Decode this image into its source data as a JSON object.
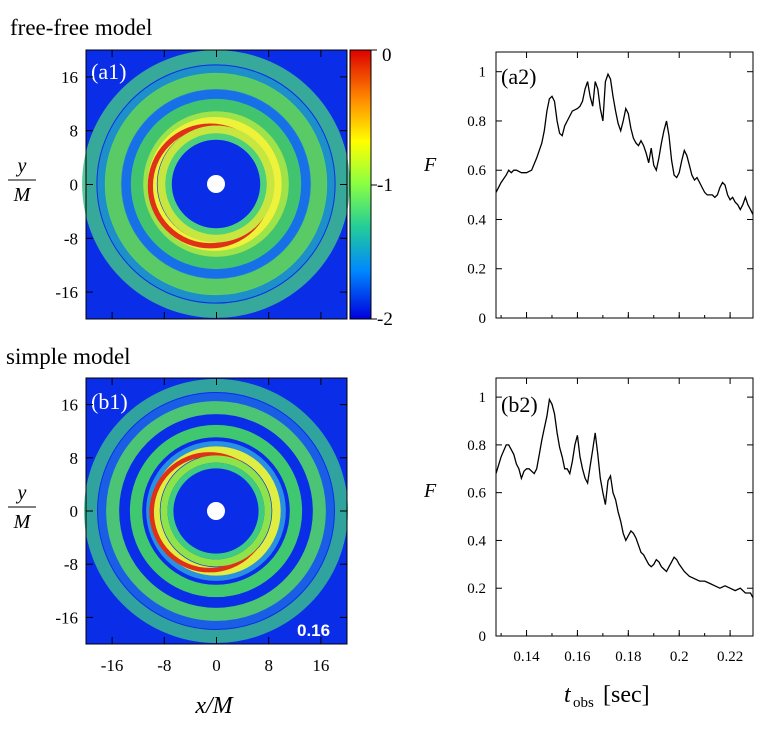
{
  "colors": {
    "low": "#0022ee",
    "mid": "#33cc66",
    "high": "#ee2200",
    "hole": "#ffffff",
    "line": "#000000"
  },
  "rows": [
    {
      "section_title": "free-free model",
      "map_label": "(a1)",
      "curve_label": "(a2)"
    },
    {
      "section_title": "simple model",
      "map_label": "(b1)",
      "curve_label": "(b2)",
      "snapshot_time": "0.16"
    }
  ],
  "map_axes": {
    "x_label": "x/M",
    "y_label_num": "y",
    "y_label_den": "M",
    "x_ticks": [
      "-16",
      "-8",
      "0",
      "8",
      "16"
    ],
    "y_ticks": [
      "16",
      "8",
      "0",
      "-8",
      "-16"
    ]
  },
  "colorbar": {
    "ticks": [
      "0",
      "-1",
      "-2"
    ],
    "range": [
      -2,
      0
    ]
  },
  "curve_axes": {
    "y_label": "F",
    "x_label_main": "t",
    "x_label_sub": "obs",
    "x_label_unit": "[sec]",
    "y_ticks": [
      "1",
      "0.8",
      "0.6",
      "0.4",
      "0.2",
      "0"
    ],
    "x_ticks": [
      "0.14",
      "0.16",
      "0.18",
      "0.2",
      "0.22"
    ]
  },
  "chart_data": [
    {
      "type": "heatmap",
      "panel": "(a1)",
      "xlabel": "x/M",
      "ylabel": "y/M",
      "xlim": [
        -20,
        20
      ],
      "ylim": [
        -20,
        20
      ],
      "colorbar_range": [
        -2,
        0
      ]
    },
    {
      "type": "line",
      "panel": "(a2)",
      "ylabel": "F",
      "xlabel": "t_obs [sec]",
      "xlim": [
        0.128,
        0.229
      ],
      "ylim": [
        0,
        1.08
      ],
      "series": [
        {
          "x": [
            0.128,
            0.13,
            0.132,
            0.133,
            0.134,
            0.135,
            0.136,
            0.138,
            0.14,
            0.142,
            0.144,
            0.146,
            0.147,
            0.148,
            0.149,
            0.15,
            0.151,
            0.152,
            0.153,
            0.154,
            0.155,
            0.156,
            0.158,
            0.16,
            0.161,
            0.162,
            0.163,
            0.164,
            0.165,
            0.166,
            0.167,
            0.168,
            0.169,
            0.17,
            0.171,
            0.172,
            0.173,
            0.174,
            0.175,
            0.176,
            0.177,
            0.178,
            0.179,
            0.18,
            0.181,
            0.182,
            0.183,
            0.184,
            0.185,
            0.186,
            0.187,
            0.188,
            0.189,
            0.19,
            0.191,
            0.192,
            0.193,
            0.194,
            0.195,
            0.196,
            0.197,
            0.198,
            0.199,
            0.2,
            0.201,
            0.202,
            0.203,
            0.204,
            0.205,
            0.206,
            0.207,
            0.208,
            0.209,
            0.21,
            0.211,
            0.212,
            0.213,
            0.214,
            0.215,
            0.216,
            0.217,
            0.218,
            0.219,
            0.22,
            0.221,
            0.222,
            0.223,
            0.224,
            0.225,
            0.226,
            0.227,
            0.228,
            0.229
          ],
          "y": [
            0.51,
            0.55,
            0.58,
            0.6,
            0.59,
            0.6,
            0.6,
            0.59,
            0.59,
            0.6,
            0.65,
            0.71,
            0.76,
            0.84,
            0.89,
            0.9,
            0.88,
            0.8,
            0.75,
            0.74,
            0.78,
            0.8,
            0.84,
            0.85,
            0.86,
            0.88,
            0.93,
            0.96,
            0.9,
            0.86,
            0.96,
            0.93,
            0.85,
            0.8,
            0.96,
            0.99,
            0.97,
            0.9,
            0.84,
            0.79,
            0.76,
            0.8,
            0.85,
            0.83,
            0.77,
            0.73,
            0.71,
            0.7,
            0.72,
            0.7,
            0.67,
            0.63,
            0.69,
            0.62,
            0.6,
            0.65,
            0.71,
            0.76,
            0.8,
            0.74,
            0.64,
            0.58,
            0.57,
            0.59,
            0.64,
            0.68,
            0.66,
            0.62,
            0.58,
            0.56,
            0.57,
            0.55,
            0.53,
            0.51,
            0.5,
            0.5,
            0.5,
            0.49,
            0.5,
            0.53,
            0.55,
            0.54,
            0.5,
            0.48,
            0.49,
            0.47,
            0.46,
            0.44,
            0.46,
            0.49,
            0.46,
            0.44,
            0.42
          ]
        }
      ]
    },
    {
      "type": "heatmap",
      "panel": "(b1)",
      "xlabel": "x/M",
      "ylabel": "y/M",
      "xlim": [
        -20,
        20
      ],
      "ylim": [
        -20,
        20
      ],
      "annotation": "0.16"
    },
    {
      "type": "line",
      "panel": "(b2)",
      "ylabel": "F",
      "xlabel": "t_obs [sec]",
      "xlim": [
        0.128,
        0.229
      ],
      "ylim": [
        0,
        1.08
      ],
      "series": [
        {
          "x": [
            0.128,
            0.13,
            0.132,
            0.133,
            0.134,
            0.135,
            0.136,
            0.137,
            0.138,
            0.139,
            0.14,
            0.141,
            0.142,
            0.143,
            0.144,
            0.145,
            0.146,
            0.147,
            0.148,
            0.149,
            0.15,
            0.151,
            0.152,
            0.153,
            0.154,
            0.155,
            0.156,
            0.157,
            0.158,
            0.159,
            0.16,
            0.161,
            0.162,
            0.163,
            0.164,
            0.165,
            0.166,
            0.167,
            0.168,
            0.169,
            0.17,
            0.171,
            0.172,
            0.173,
            0.174,
            0.175,
            0.176,
            0.177,
            0.178,
            0.179,
            0.18,
            0.181,
            0.182,
            0.183,
            0.184,
            0.185,
            0.186,
            0.187,
            0.188,
            0.189,
            0.19,
            0.191,
            0.192,
            0.193,
            0.194,
            0.195,
            0.196,
            0.197,
            0.198,
            0.199,
            0.2,
            0.202,
            0.204,
            0.206,
            0.208,
            0.21,
            0.212,
            0.214,
            0.216,
            0.218,
            0.22,
            0.222,
            0.224,
            0.226,
            0.228,
            0.229
          ],
          "y": [
            0.68,
            0.75,
            0.8,
            0.8,
            0.78,
            0.76,
            0.72,
            0.7,
            0.66,
            0.69,
            0.7,
            0.7,
            0.69,
            0.68,
            0.7,
            0.76,
            0.82,
            0.87,
            0.92,
            0.99,
            0.97,
            0.93,
            0.85,
            0.79,
            0.75,
            0.7,
            0.7,
            0.68,
            0.73,
            0.8,
            0.84,
            0.75,
            0.7,
            0.66,
            0.64,
            0.71,
            0.78,
            0.85,
            0.76,
            0.66,
            0.6,
            0.55,
            0.65,
            0.67,
            0.6,
            0.57,
            0.52,
            0.48,
            0.43,
            0.4,
            0.42,
            0.44,
            0.43,
            0.41,
            0.38,
            0.35,
            0.34,
            0.32,
            0.3,
            0.29,
            0.3,
            0.32,
            0.31,
            0.29,
            0.28,
            0.27,
            0.29,
            0.31,
            0.33,
            0.32,
            0.3,
            0.27,
            0.25,
            0.24,
            0.23,
            0.23,
            0.22,
            0.21,
            0.2,
            0.21,
            0.2,
            0.19,
            0.2,
            0.18,
            0.18,
            0.16
          ]
        }
      ]
    }
  ]
}
